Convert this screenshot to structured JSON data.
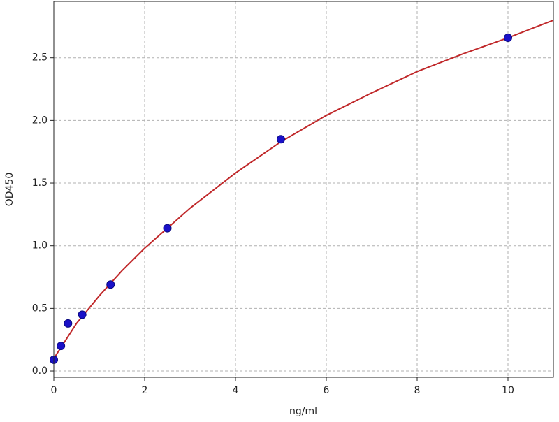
{
  "chart_data": {
    "type": "scatter",
    "xlabel": "ng/ml",
    "ylabel": "OD450",
    "xlim": [
      0,
      11
    ],
    "ylim": [
      -0.05,
      2.95
    ],
    "xticks": [
      0,
      2,
      4,
      6,
      8,
      10
    ],
    "yticks": [
      {
        "value": 0,
        "label": "0.0"
      },
      0.5,
      {
        "value": 1,
        "label": "1.0"
      },
      1.5,
      {
        "value": 2,
        "label": "2.0"
      },
      2.5
    ],
    "grid": true,
    "series": [
      {
        "type": "line",
        "color": "#c0282a",
        "x": [
          0,
          0.5,
          1,
          1.5,
          2,
          3,
          4,
          5,
          6,
          7,
          8,
          9,
          10,
          11
        ],
        "values": [
          0.1,
          0.38,
          0.6,
          0.8,
          0.98,
          1.3,
          1.58,
          1.83,
          2.04,
          2.22,
          2.39,
          2.53,
          2.66,
          2.8
        ]
      },
      {
        "type": "scatter",
        "color": "#1a10c8",
        "x": [
          0,
          0.156,
          0.3125,
          0.625,
          1.25,
          2.5,
          5,
          10
        ],
        "values": [
          0.09,
          0.2,
          0.38,
          0.45,
          0.69,
          1.14,
          1.85,
          2.66
        ]
      }
    ]
  }
}
